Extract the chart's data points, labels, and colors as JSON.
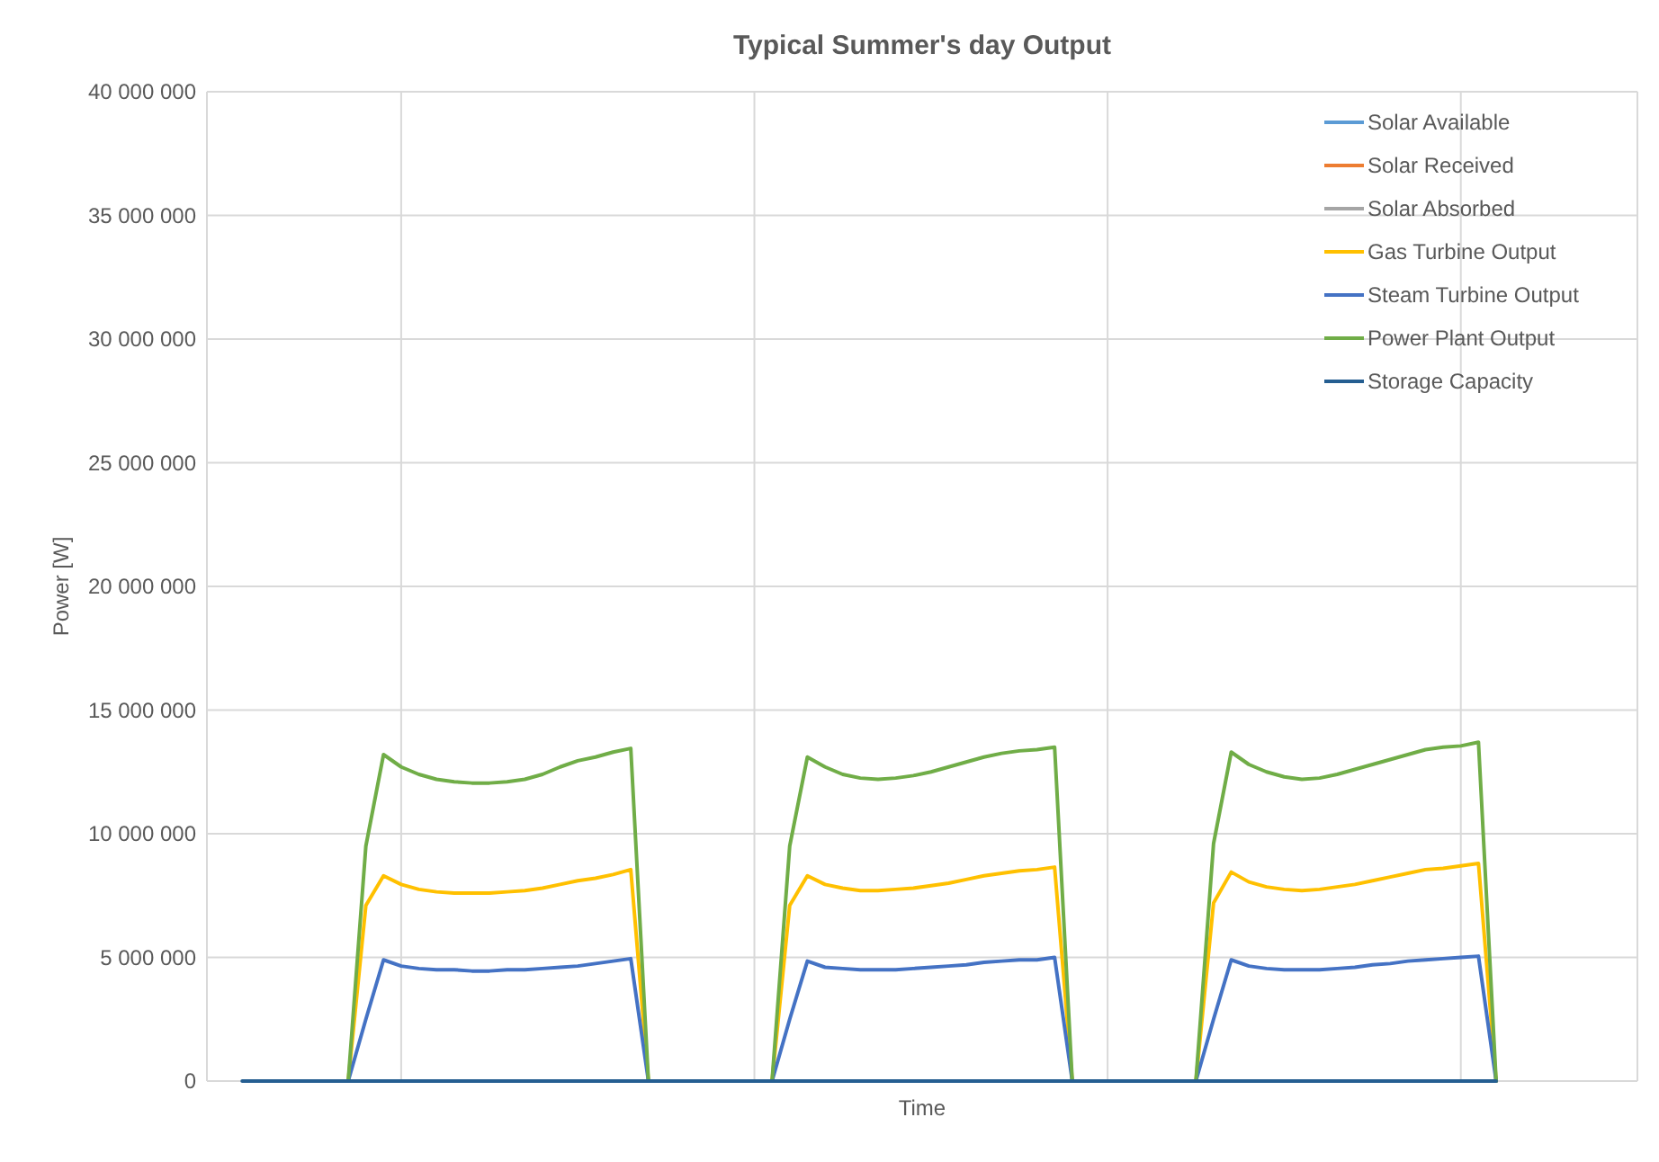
{
  "chart_data": {
    "type": "line",
    "title": "Typical Summer's day Output",
    "xlabel": "Time",
    "ylabel": "Power [W]",
    "categories": [
      null,
      null,
      null,
      null,
      null,
      null,
      null,
      null,
      null,
      null,
      null,
      null,
      null,
      null,
      null,
      null,
      null,
      null,
      null,
      null,
      null,
      null,
      null,
      null,
      null,
      null,
      null,
      null,
      null,
      null,
      null,
      null,
      null,
      null,
      null,
      null,
      null,
      null,
      null,
      null,
      null,
      null,
      null,
      null,
      null,
      null,
      null,
      null,
      null,
      null,
      null,
      null,
      null,
      null,
      null,
      null,
      null,
      null,
      null,
      null,
      null,
      null,
      null,
      null,
      null,
      null,
      null,
      null,
      null,
      null,
      null,
      null
    ],
    "ylim": [
      0,
      40000000
    ],
    "yticks": [
      {
        "value": 0,
        "label": "0"
      },
      {
        "value": 5000000,
        "label": "5 000 000"
      },
      {
        "value": 10000000,
        "label": "10 000 000"
      },
      {
        "value": 15000000,
        "label": "15 000 000"
      },
      {
        "value": 20000000,
        "label": "20 000 000"
      },
      {
        "value": 25000000,
        "label": "25 000 000"
      },
      {
        "value": 30000000,
        "label": "30 000 000"
      },
      {
        "value": 35000000,
        "label": "35 000 000"
      },
      {
        "value": 40000000,
        "label": "40 000 000"
      }
    ],
    "grid": true,
    "legend": "top right",
    "marker": "none",
    "line_style": "solid",
    "series": [
      {
        "name": "Solar Available",
        "color": "#5b9bd5",
        "values": [
          null,
          null,
          null,
          null,
          null,
          null,
          null,
          null,
          null,
          null,
          null,
          null,
          null,
          null,
          null,
          null,
          null,
          null,
          null,
          null,
          null,
          null,
          null,
          null,
          null,
          null,
          null,
          null,
          null,
          null,
          null,
          null,
          null,
          null,
          null,
          null,
          null,
          null,
          null,
          null,
          null,
          null,
          null,
          null,
          null,
          null,
          null,
          null,
          null,
          null,
          null,
          null,
          null,
          null,
          null,
          null,
          null,
          null,
          null,
          null,
          null,
          null,
          null,
          null,
          null,
          null,
          null,
          null,
          null,
          null,
          null,
          null
        ]
      },
      {
        "name": "Solar Received",
        "color": "#ed7d31",
        "values": [
          null,
          null,
          null,
          null,
          null,
          null,
          null,
          null,
          null,
          null,
          null,
          null,
          null,
          null,
          null,
          null,
          null,
          null,
          null,
          null,
          null,
          null,
          null,
          null,
          null,
          null,
          null,
          null,
          null,
          null,
          null,
          null,
          null,
          null,
          null,
          null,
          null,
          null,
          null,
          null,
          null,
          null,
          null,
          null,
          null,
          null,
          null,
          null,
          null,
          null,
          null,
          null,
          null,
          null,
          null,
          null,
          null,
          null,
          null,
          null,
          null,
          null,
          null,
          null,
          null,
          null,
          null,
          null,
          null,
          null,
          null,
          null
        ]
      },
      {
        "name": "Solar Absorbed",
        "color": "#a5a5a5",
        "values": [
          null,
          null,
          null,
          null,
          null,
          null,
          null,
          null,
          null,
          null,
          null,
          null,
          null,
          null,
          null,
          null,
          null,
          null,
          null,
          null,
          null,
          null,
          null,
          null,
          null,
          null,
          null,
          null,
          null,
          null,
          null,
          null,
          null,
          null,
          null,
          null,
          null,
          null,
          null,
          null,
          null,
          null,
          null,
          null,
          null,
          null,
          null,
          null,
          null,
          null,
          null,
          null,
          null,
          null,
          null,
          null,
          null,
          null,
          null,
          null,
          null,
          null,
          null,
          null,
          null,
          null,
          null,
          null,
          null,
          null,
          null,
          null
        ]
      },
      {
        "name": "Gas Turbine Output",
        "color": "#ffc000",
        "values": [
          null,
          null,
          null,
          null,
          null,
          0,
          0,
          7100000,
          8300000,
          7950000,
          7750000,
          7650000,
          7600000,
          7600000,
          7600000,
          7650000,
          7700000,
          7800000,
          7950000,
          8100000,
          8200000,
          8350000,
          8550000,
          0,
          0,
          0,
          0,
          0,
          0,
          0,
          0,
          7100000,
          8300000,
          7950000,
          7800000,
          7700000,
          7700000,
          7750000,
          7800000,
          7900000,
          8000000,
          8150000,
          8300000,
          8400000,
          8500000,
          8550000,
          8650000,
          0,
          0,
          0,
          0,
          0,
          0,
          0,
          0,
          7200000,
          8450000,
          8050000,
          7850000,
          7750000,
          7700000,
          7750000,
          7850000,
          7950000,
          8100000,
          8250000,
          8400000,
          8550000,
          8600000,
          8700000,
          8800000,
          0
        ]
      },
      {
        "name": "Steam Turbine Output",
        "color": "#4472c4",
        "values": [
          null,
          null,
          null,
          null,
          null,
          0,
          0,
          2500000,
          4900000,
          4650000,
          4550000,
          4500000,
          4500000,
          4450000,
          4450000,
          4500000,
          4500000,
          4550000,
          4600000,
          4650000,
          4750000,
          4850000,
          4950000,
          0,
          0,
          0,
          0,
          0,
          0,
          0,
          0,
          2500000,
          4850000,
          4600000,
          4550000,
          4500000,
          4500000,
          4500000,
          4550000,
          4600000,
          4650000,
          4700000,
          4800000,
          4850000,
          4900000,
          4900000,
          5000000,
          0,
          0,
          0,
          0,
          0,
          0,
          0,
          0,
          2500000,
          4900000,
          4650000,
          4550000,
          4500000,
          4500000,
          4500000,
          4550000,
          4600000,
          4700000,
          4750000,
          4850000,
          4900000,
          4950000,
          5000000,
          5050000,
          0
        ]
      },
      {
        "name": "Power Plant Output",
        "color": "#70ad47",
        "values": [
          null,
          null,
          null,
          null,
          null,
          0,
          0,
          9500000,
          13200000,
          12700000,
          12400000,
          12200000,
          12100000,
          12050000,
          12050000,
          12100000,
          12200000,
          12400000,
          12700000,
          12950000,
          13100000,
          13300000,
          13450000,
          0,
          0,
          0,
          0,
          0,
          0,
          0,
          0,
          9500000,
          13100000,
          12700000,
          12400000,
          12250000,
          12200000,
          12250000,
          12350000,
          12500000,
          12700000,
          12900000,
          13100000,
          13250000,
          13350000,
          13400000,
          13500000,
          0,
          0,
          0,
          0,
          0,
          0,
          0,
          0,
          9600000,
          13300000,
          12800000,
          12500000,
          12300000,
          12200000,
          12250000,
          12400000,
          12600000,
          12800000,
          13000000,
          13200000,
          13400000,
          13500000,
          13550000,
          13700000,
          0
        ]
      },
      {
        "name": "Storage Capacity",
        "color": "#255e91",
        "values": [
          0,
          0,
          0,
          0,
          0,
          0,
          0,
          0,
          0,
          0,
          0,
          0,
          0,
          0,
          0,
          0,
          0,
          0,
          0,
          0,
          0,
          0,
          0,
          0,
          0,
          0,
          0,
          0,
          0,
          0,
          0,
          0,
          0,
          0,
          0,
          0,
          0,
          0,
          0,
          0,
          0,
          0,
          0,
          0,
          0,
          0,
          0,
          0,
          0,
          0,
          0,
          0,
          0,
          0,
          0,
          0,
          0,
          0,
          0,
          0,
          0,
          0,
          0,
          0,
          0,
          0,
          0,
          0,
          0,
          0,
          0,
          0
        ]
      }
    ]
  }
}
